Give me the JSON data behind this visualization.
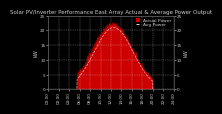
{
  "title": "Solar PV/Inverter Performance East Array Actual & Average Power Output",
  "title_fontsize": 4.0,
  "title_color": "#cccccc",
  "bg_color": "#000000",
  "plot_bg_color": "#000000",
  "fill_color": "#cc0000",
  "line_color": "#dd0000",
  "avg_line_color": "#ff4444",
  "grid_color": "#ffffff",
  "ylabel_left": "kW",
  "ylabel_right": "kW",
  "ylabel_fontsize": 3.5,
  "tick_fontsize": 3.0,
  "ylim": [
    0,
    25
  ],
  "yticks": [
    0,
    5,
    10,
    15,
    20,
    25
  ],
  "legend_actual": "Actual Power",
  "legend_avg": "Avg Power",
  "legend_fontsize": 3.2,
  "xlim_start": 0,
  "xlim_end": 24
}
